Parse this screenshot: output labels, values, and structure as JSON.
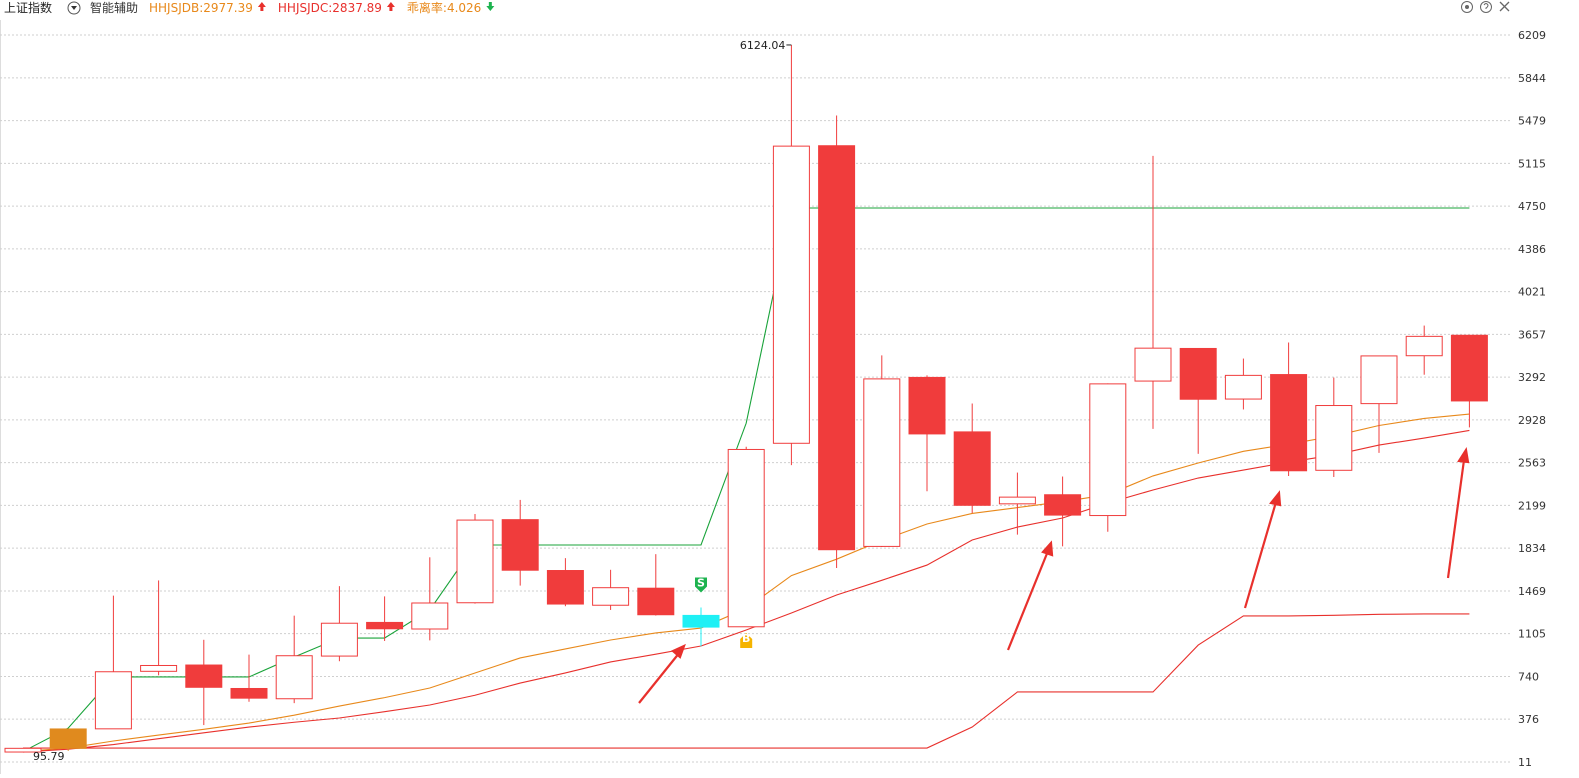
{
  "header": {
    "title": "上证指数",
    "tool": "智能辅助",
    "indicators": [
      {
        "text": "HHJSJDB:2977.39",
        "color": "#e8891b",
        "direction": "up"
      },
      {
        "text": "HHJSJDC:2837.89",
        "color": "#e8302c",
        "direction": "up"
      },
      {
        "text": "乖离率:4.026",
        "color": "#e8891b",
        "direction": "down"
      }
    ]
  },
  "chart_data": {
    "type": "candlestick",
    "categories": [
      null,
      null,
      null,
      null,
      null,
      null,
      null,
      null,
      null,
      null,
      null,
      null,
      null,
      null,
      null,
      null,
      null,
      null,
      null,
      null,
      null,
      null,
      null,
      null,
      null,
      null,
      null,
      null,
      null,
      null,
      null,
      null,
      null
    ],
    "open": [
      96.05,
      127.61,
      293.75,
      784.13,
      837.7,
      637.72,
      550.26,
      914.06,
      1200.95,
      1144.89,
      1368.69,
      2077.07,
      1643.48,
      1347.43,
      1492.72,
      1260.78,
      1163.88,
      2728.19,
      5265,
      1849.02,
      3289.75,
      2825.33,
      2212,
      2289.51,
      2112.13,
      3258.63,
      3536.59,
      3105.31,
      3314.03,
      2497.88,
      3066.34,
      3474.68,
      3649.15
    ],
    "high": [
      127.61,
      292.75,
      1429.01,
      1558.95,
      1052.94,
      926.41,
      1258.69,
      1510.18,
      1422.98,
      1756.18,
      2125.72,
      2245.43,
      1748.89,
      1649.6,
      1783.01,
      1328.53,
      2698.9,
      6124.04,
      5522.78,
      3478.01,
      3306.75,
      3067.46,
      2478.38,
      2444.8,
      3239.36,
      5178.19,
      3538.69,
      3450.49,
      3587.03,
      3288.45,
      3474.92,
      3731.69,
      3651.89
    ],
    "low": [
      95.79,
      105.77,
      292.76,
      750.46,
      325.89,
      524.43,
      512.83,
      870.18,
      1043.02,
      1047.83,
      1361.21,
      1514.86,
      1339.2,
      1307.4,
      1259.43,
      998.23,
      1161.91,
      2541.53,
      1664.93,
      1844.09,
      2319.74,
      2134.02,
      1949.46,
      1849.65,
      1974.38,
      2850.71,
      2638.3,
      3016.53,
      2449.2,
      2440.91,
      2646.8,
      3312.72,
      2863.65
    ],
    "close": [
      127.61,
      292.75,
      780.39,
      833.8,
      647.87,
      555.29,
      917.01,
      1194.1,
      1146.7,
      1366.58,
      2073.48,
      1645.97,
      1357.65,
      1497.04,
      1266.5,
      1161.06,
      2675.47,
      5261.56,
      1820.81,
      3277.14,
      2808.08,
      2199.42,
      2269.13,
      2115.98,
      3234.68,
      3539.18,
      3103.64,
      3307.17,
      2493.9,
      3050.12,
      3473.07,
      3639.78,
      3089.26
    ],
    "colors": [
      "#f03c3c",
      "#e08a1e",
      "#f03c3c",
      "#f03c3c",
      "#f03c3c",
      "#f03c3c",
      "#f03c3c",
      "#f03c3c",
      "#f03c3c",
      "#f03c3c",
      "#f03c3c",
      "#f03c3c",
      "#f03c3c",
      "#f03c3c",
      "#f03c3c",
      "#1ff0f5",
      "#f03c3c",
      "#f03c3c",
      "#f03c3c",
      "#f03c3c",
      "#f03c3c",
      "#f03c3c",
      "#f03c3c",
      "#f03c3c",
      "#f03c3c",
      "#f03c3c",
      "#f03c3c",
      "#f03c3c",
      "#f03c3c",
      "#f03c3c",
      "#f03c3c",
      "#f03c3c",
      "#f03c3c"
    ],
    "lines": [
      {
        "color": "#19a33a",
        "values": [
          100,
          300,
          736,
          736,
          736,
          736,
          906,
          1068,
          1068,
          1307,
          1861,
          1861,
          1861,
          1861,
          1861,
          1861,
          2900,
          4734,
          4734,
          4734,
          4734,
          4734,
          4734,
          4734,
          4734,
          4734,
          4734,
          4734,
          4734,
          4734,
          4734,
          4734,
          4734
        ]
      },
      {
        "color": "#e8891b",
        "values": [
          100,
          130,
          190,
          241,
          290,
          343,
          410,
          488,
          560,
          642,
          770,
          898,
          975,
          1051,
          1111,
          1153,
          1320,
          1600,
          1740,
          1900,
          2040,
          2130,
          2180,
          2230,
          2290,
          2450,
          2560,
          2660,
          2720,
          2790,
          2880,
          2940,
          2977.39
        ]
      },
      {
        "color": "#e8302c",
        "values": [
          96,
          120,
          160,
          210,
          260,
          309,
          350,
          386,
          440,
          497,
          580,
          684,
          770,
          864,
          930,
          1000,
          1136,
          1281,
          1435,
          1560,
          1690,
          1904,
          2014,
          2091,
          2219,
          2330,
          2432,
          2500,
          2568,
          2628,
          2713,
          2773,
          2837.89
        ]
      },
      {
        "color": "#e8302c",
        "values": [
          130,
          130,
          130,
          130,
          130,
          130,
          130,
          130,
          130,
          130,
          130,
          130,
          130,
          130,
          130,
          130,
          130,
          130,
          130,
          130,
          130,
          309,
          608,
          608,
          608,
          608,
          1008,
          1256,
          1256,
          1262,
          1270,
          1273,
          1273
        ]
      }
    ],
    "max_label": "6124.04",
    "min_label": "95.79",
    "signals": [
      {
        "label": "S",
        "at": 15,
        "color": "#1db34f",
        "side": "above"
      },
      {
        "label": "B",
        "at": 16,
        "color": "#f5b400",
        "side": "below"
      }
    ],
    "ylim": [
      11,
      6209
    ],
    "yticks": [
      11,
      376,
      740,
      1105,
      1469,
      1834,
      2199,
      2563,
      2928,
      3292,
      3657,
      4021,
      4386,
      4750,
      5115,
      5479,
      5844,
      6209
    ],
    "grid": true
  }
}
